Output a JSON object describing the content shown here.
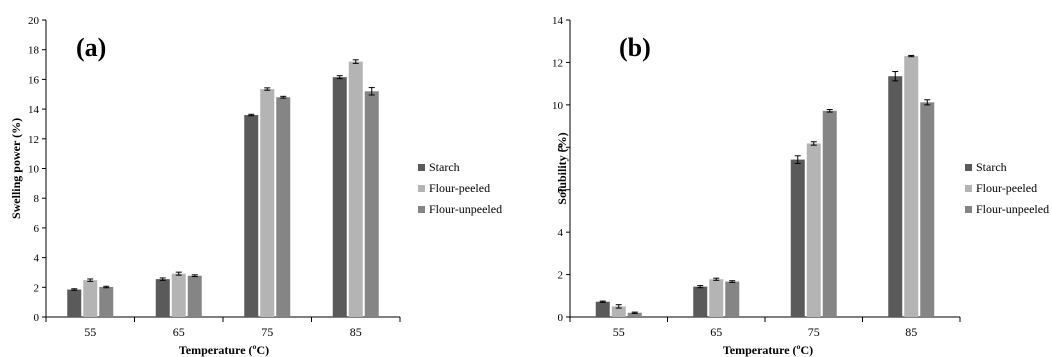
{
  "chart_data": [
    {
      "type": "bar",
      "panel_label": "(a)",
      "categories": [
        "55",
        "65",
        "75",
        "85"
      ],
      "series": [
        {
          "name": "Starch",
          "color": "#5a5a5a",
          "values": [
            1.85,
            2.55,
            13.6,
            16.15
          ],
          "errors": [
            0.05,
            0.08,
            0.05,
            0.1
          ]
        },
        {
          "name": "Flour-peeled",
          "color": "#b4b4b4",
          "values": [
            2.48,
            2.92,
            15.35,
            17.2
          ],
          "errors": [
            0.08,
            0.1,
            0.08,
            0.12
          ]
        },
        {
          "name": "Flour-unpeeled",
          "color": "#858585",
          "values": [
            2.02,
            2.78,
            14.8,
            15.2
          ],
          "errors": [
            0.05,
            0.06,
            0.06,
            0.25
          ]
        }
      ],
      "xlabel": "Temperature (ºC)",
      "ylabel": "Swelling power (%)",
      "ylim": [
        0,
        20
      ],
      "yticks": [
        "0",
        "2",
        "4",
        "6",
        "8",
        "10",
        "12",
        "14",
        "16",
        "18",
        "20"
      ],
      "legend_position": "right"
    },
    {
      "type": "bar",
      "panel_label": "(b)",
      "categories": [
        "55",
        "65",
        "75",
        "85"
      ],
      "series": [
        {
          "name": "Starch",
          "color": "#5a5a5a",
          "values": [
            0.72,
            1.43,
            7.42,
            11.35
          ],
          "errors": [
            0.03,
            0.05,
            0.18,
            0.22
          ]
        },
        {
          "name": "Flour-peeled",
          "color": "#b4b4b4",
          "values": [
            0.5,
            1.78,
            8.18,
            12.3
          ],
          "errors": [
            0.08,
            0.05,
            0.08,
            0.03
          ]
        },
        {
          "name": "Flour-unpeeled",
          "color": "#858585",
          "values": [
            0.2,
            1.67,
            9.72,
            10.12
          ],
          "errors": [
            0.03,
            0.04,
            0.06,
            0.12
          ]
        }
      ],
      "xlabel": "Temperature (ºC)",
      "ylabel": "Solubility (%)",
      "ylim": [
        0,
        14
      ],
      "yticks": [
        "0",
        "2",
        "4",
        "6",
        "8",
        "10",
        "12",
        "14"
      ],
      "legend_position": "right"
    }
  ]
}
